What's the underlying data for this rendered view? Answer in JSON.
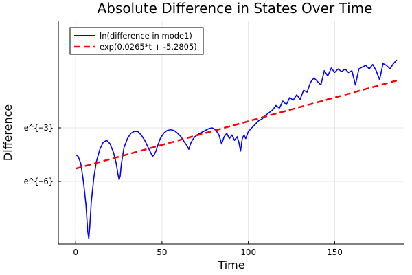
{
  "chart_data": {
    "type": "line",
    "title": "Absolute Difference in States Over Time",
    "xlabel": "Time",
    "ylabel": "Difference",
    "xlim": [
      -10,
      190
    ],
    "ylim": [
      -9.5,
      3.0
    ],
    "y_scale": "log (natural), values shown as ln",
    "x_ticks": [
      0,
      50,
      100,
      150
    ],
    "x_tick_labels": [
      "0",
      "50",
      "100",
      "150"
    ],
    "y_ticks": [
      -3,
      -6
    ],
    "y_tick_labels": [
      "e^{−3}",
      "e^{−6}"
    ],
    "grid": true,
    "legend_position": "top-left",
    "series": [
      {
        "name": "ln(difference in mode1)",
        "color": "#0000ff",
        "style": "solid",
        "x": [
          0,
          1.5,
          3,
          4.5,
          6,
          7,
          7.6,
          8.2,
          9,
          10.5,
          12,
          14,
          16,
          18,
          20,
          22,
          23.5,
          24.5,
          25.2,
          25.8,
          26.5,
          28,
          30,
          32,
          34,
          36,
          38,
          40,
          42,
          43.5,
          44.5,
          45.5,
          46.5,
          47.5,
          49,
          51,
          53,
          55,
          57,
          59,
          61,
          63,
          64.5,
          65.5,
          66.5,
          67.5,
          69,
          71,
          73,
          75,
          77,
          79,
          81,
          83,
          84.5,
          86,
          87.5,
          89,
          90.5,
          92,
          93.5,
          94.5,
          95.5,
          96.5,
          97.5,
          98.5,
          100,
          102,
          104,
          106,
          108,
          110,
          112,
          114,
          116,
          118,
          120,
          122,
          124,
          126,
          128,
          130,
          132,
          134,
          136,
          138,
          140,
          142,
          144,
          146,
          148,
          150,
          152,
          154,
          156,
          158,
          160,
          162,
          164,
          166,
          168,
          170,
          172,
          174,
          176,
          178,
          180,
          182,
          184,
          186
        ],
        "y": [
          -4.5,
          -4.6,
          -5.0,
          -6.0,
          -7.3,
          -8.8,
          -9.2,
          -8.5,
          -7.2,
          -5.8,
          -4.9,
          -4.2,
          -3.8,
          -3.7,
          -3.9,
          -4.4,
          -5.0,
          -5.6,
          -5.9,
          -5.7,
          -5.0,
          -4.1,
          -3.6,
          -3.3,
          -3.2,
          -3.2,
          -3.4,
          -3.7,
          -4.1,
          -4.4,
          -4.6,
          -4.5,
          -4.3,
          -4.0,
          -3.6,
          -3.3,
          -3.15,
          -3.1,
          -3.15,
          -3.3,
          -3.5,
          -3.8,
          -4.0,
          -4.2,
          -3.9,
          -3.7,
          -3.5,
          -3.35,
          -3.25,
          -3.15,
          -3.05,
          -3.0,
          -3.1,
          -3.4,
          -3.9,
          -3.5,
          -3.3,
          -3.6,
          -3.4,
          -3.7,
          -3.5,
          -3.8,
          -4.3,
          -3.6,
          -3.4,
          -3.6,
          -3.2,
          -3.0,
          -2.8,
          -2.6,
          -2.5,
          -2.3,
          -2.15,
          -2.0,
          -1.75,
          -1.9,
          -1.5,
          -1.7,
          -1.3,
          -1.45,
          -1.15,
          -1.4,
          -0.9,
          -1.0,
          -0.45,
          -0.2,
          -0.4,
          -0.6,
          0.2,
          -0.1,
          0.35,
          0.1,
          0.3,
          0.15,
          0.3,
          0.1,
          0.2,
          -0.6,
          0.3,
          0.4,
          0.5,
          0.3,
          0.55,
          0.2,
          -0.3,
          0.6,
          0.5,
          0.3,
          0.6,
          0.8
        ]
      },
      {
        "name": "exp(0.0265*t + -5.2805)",
        "color": "#ff0000",
        "style": "dashed",
        "x": [
          0,
          186
        ],
        "y": [
          -5.2805,
          -0.3515
        ]
      }
    ]
  }
}
